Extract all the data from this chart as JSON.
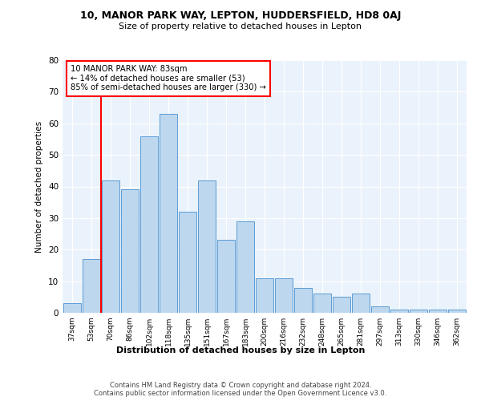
{
  "title1": "10, MANOR PARK WAY, LEPTON, HUDDERSFIELD, HD8 0AJ",
  "title2": "Size of property relative to detached houses in Lepton",
  "xlabel": "Distribution of detached houses by size in Lepton",
  "ylabel": "Number of detached properties",
  "categories": [
    "37sqm",
    "53sqm",
    "70sqm",
    "86sqm",
    "102sqm",
    "118sqm",
    "135sqm",
    "151sqm",
    "167sqm",
    "183sqm",
    "200sqm",
    "216sqm",
    "232sqm",
    "248sqm",
    "265sqm",
    "281sqm",
    "297sqm",
    "313sqm",
    "330sqm",
    "346sqm",
    "362sqm"
  ],
  "values": [
    3,
    17,
    42,
    39,
    56,
    63,
    32,
    42,
    23,
    29,
    11,
    11,
    8,
    6,
    5,
    6,
    2,
    1,
    1,
    1,
    1
  ],
  "bar_color": "#bdd7ee",
  "bar_edge_color": "#5b9bd5",
  "vline_x": 1.5,
  "vline_color": "red",
  "annotation_text": "10 MANOR PARK WAY: 83sqm\n← 14% of detached houses are smaller (53)\n85% of semi-detached houses are larger (330) →",
  "annotation_box_color": "white",
  "annotation_box_edge": "red",
  "ylim": [
    0,
    80
  ],
  "yticks": [
    0,
    10,
    20,
    30,
    40,
    50,
    60,
    70,
    80
  ],
  "footnote": "Contains HM Land Registry data © Crown copyright and database right 2024.\nContains public sector information licensed under the Open Government Licence v3.0.",
  "bg_color": "#eaf3fb",
  "fig_bg_color": "#ffffff"
}
